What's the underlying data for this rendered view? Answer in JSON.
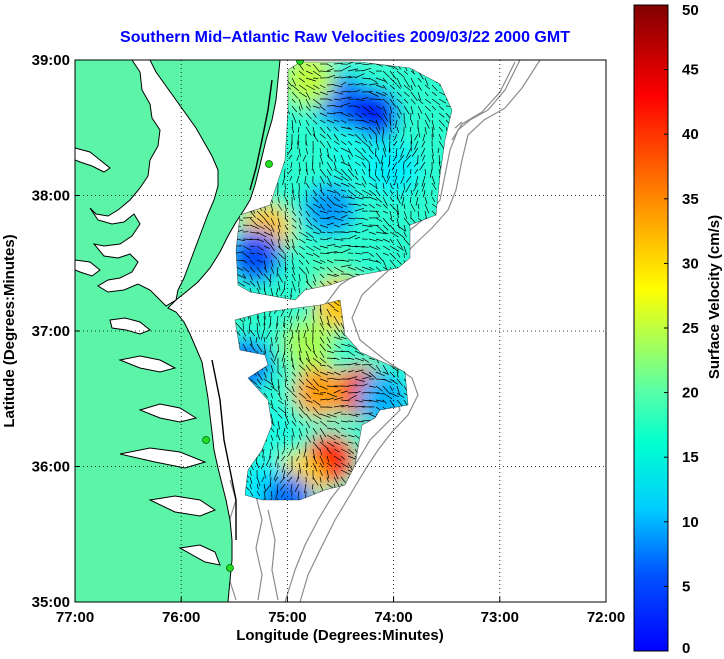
{
  "chart_data": {
    "type": "heatmap",
    "title": "Southern Mid–Atlantic Raw Velocities 2009/03/22 2000 GMT",
    "xlabel": "Longitude (Degrees:Minutes)",
    "ylabel": "Latitude (Degrees:Minutes)",
    "xlim": [
      -77,
      -72
    ],
    "ylim": [
      35,
      39
    ],
    "x_ticks": [
      {
        "value": -77,
        "label": "77:00"
      },
      {
        "value": -76,
        "label": "76:00"
      },
      {
        "value": -75,
        "label": "75:00"
      },
      {
        "value": -74,
        "label": "74:00"
      },
      {
        "value": -73,
        "label": "73:00"
      },
      {
        "value": -72,
        "label": "72:00"
      }
    ],
    "y_ticks": [
      {
        "value": 35,
        "label": "35:00"
      },
      {
        "value": 36,
        "label": "36:00"
      },
      {
        "value": 37,
        "label": "37:00"
      },
      {
        "value": 38,
        "label": "38:00"
      },
      {
        "value": 39,
        "label": "39:00"
      }
    ],
    "grid": true,
    "colorbar": {
      "label": "Surface Velocity (cm/s)",
      "min": 0,
      "max": 50,
      "ticks": [
        {
          "value": 0,
          "label": "0"
        },
        {
          "value": 5,
          "label": "5"
        },
        {
          "value": 10,
          "label": "10"
        },
        {
          "value": 15,
          "label": "15"
        },
        {
          "value": 20,
          "label": "20"
        },
        {
          "value": 25,
          "label": "25"
        },
        {
          "value": 30,
          "label": "30"
        },
        {
          "value": 35,
          "label": "35"
        },
        {
          "value": 40,
          "label": "40"
        },
        {
          "value": 45,
          "label": "45"
        },
        {
          "value": 50,
          "label": "50"
        }
      ]
    },
    "velocity_regions": [
      {
        "lon": -74.5,
        "lat": 38.7,
        "speed": 12
      },
      {
        "lon": -74.2,
        "lat": 38.6,
        "speed": 8
      },
      {
        "lon": -74.8,
        "lat": 38.85,
        "speed": 28
      },
      {
        "lon": -74.4,
        "lat": 38.3,
        "speed": 20
      },
      {
        "lon": -74.0,
        "lat": 38.2,
        "speed": 18
      },
      {
        "lon": -74.6,
        "lat": 37.9,
        "speed": 14
      },
      {
        "lon": -75.2,
        "lat": 37.75,
        "speed": 34
      },
      {
        "lon": -75.3,
        "lat": 37.55,
        "speed": 10
      },
      {
        "lon": -74.6,
        "lat": 37.45,
        "speed": 22
      },
      {
        "lon": -74.5,
        "lat": 37.2,
        "speed": 34
      },
      {
        "lon": -75.4,
        "lat": 36.75,
        "speed": 12
      },
      {
        "lon": -74.8,
        "lat": 36.9,
        "speed": 27
      },
      {
        "lon": -74.3,
        "lat": 36.55,
        "speed": 43
      },
      {
        "lon": -74.7,
        "lat": 36.55,
        "speed": 36
      },
      {
        "lon": -74.1,
        "lat": 36.5,
        "speed": 15
      },
      {
        "lon": -75.2,
        "lat": 36.3,
        "speed": 20
      },
      {
        "lon": -74.6,
        "lat": 36.05,
        "speed": 42
      },
      {
        "lon": -74.9,
        "lat": 35.9,
        "speed": 33
      },
      {
        "lon": -75.2,
        "lat": 35.85,
        "speed": 18
      },
      {
        "lon": -75.0,
        "lat": 35.75,
        "speed": 12
      }
    ],
    "colors": {
      "land": "#5cf5a8",
      "coast": "#000000",
      "bathymetry": "#8c8c8c",
      "site_marker": "#22dd22",
      "grid": "#000000",
      "arrows": "#000000"
    }
  }
}
